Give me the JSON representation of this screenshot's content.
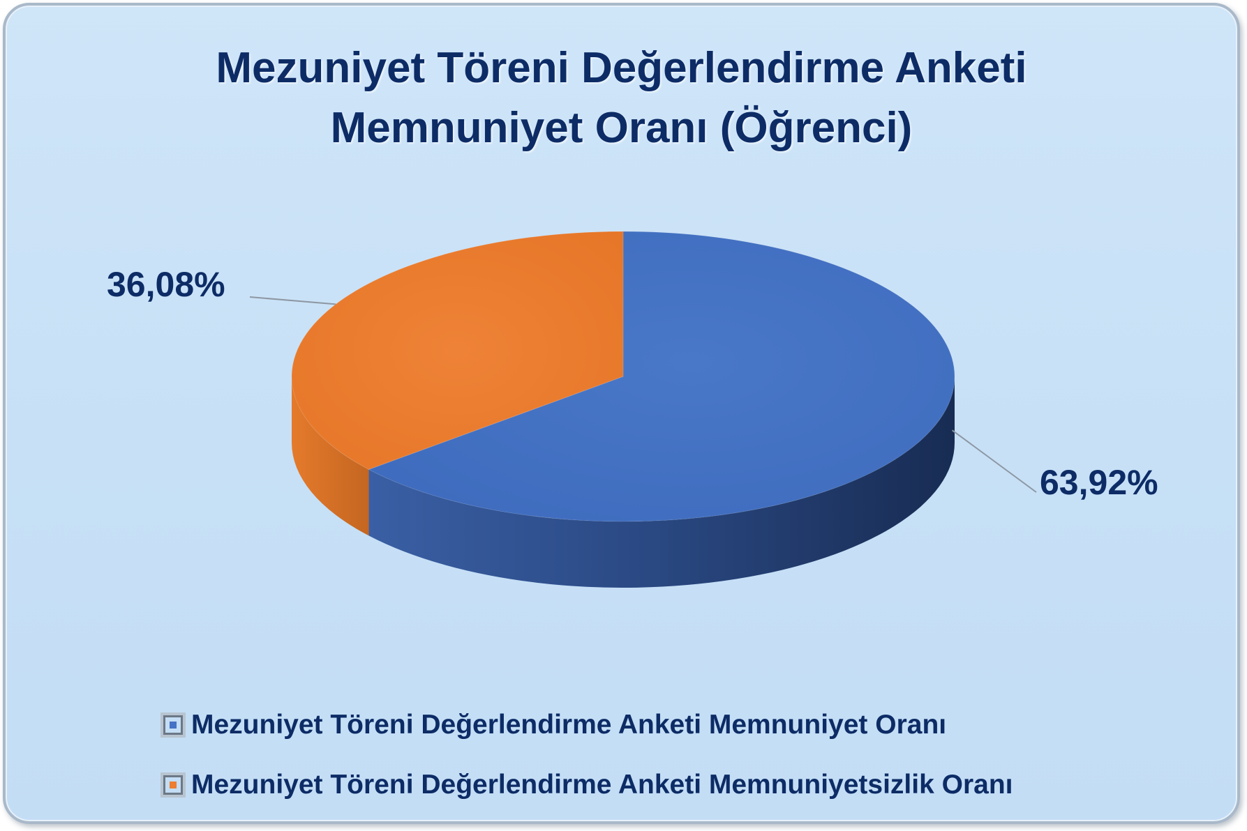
{
  "chart_data": {
    "type": "pie",
    "title_lines": [
      "Mezuniyet Töreni Değerlendirme Anketi",
      "Memnuniyet Oranı (Öğrenci)"
    ],
    "categories": [
      "Mezuniyet Töreni Değerlendirme Anketi Memnuniyet Oranı",
      "Mezuniyet Töreni Değerlendirme Anketi Memnuniyetsizlik Oranı"
    ],
    "values": [
      63.92,
      36.08
    ],
    "data_labels": [
      "63,92%",
      "36,08%"
    ],
    "colors": [
      "#4472c4",
      "#ed7d31"
    ],
    "style": "3d-pie",
    "legend_position": "bottom"
  }
}
